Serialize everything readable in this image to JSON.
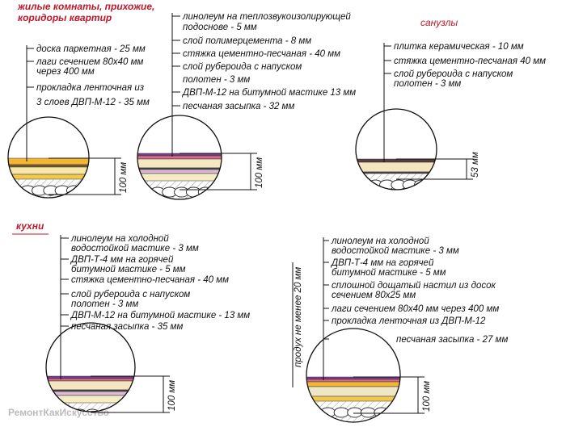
{
  "sections": {
    "living": [
      "жилые комнаты, прихожие,",
      "коридоры квартир"
    ],
    "bathrooms": "санузлы",
    "kitchens": "кухни"
  },
  "diagrams": [
    {
      "labels": [
        [
          "доска паркетная - 25 мм"
        ],
        [
          "лаги сечением 80х40 мм",
          "через 400 мм"
        ],
        [
          "прокладка ленточная из",
          "3 слоев ДВП-М-12 - 35 мм"
        ]
      ],
      "dimension": "100 мм"
    },
    {
      "labels": [
        [
          "линолеум на теплозвукоизолирующей",
          "подоснове - 5 мм"
        ],
        [
          "слой полимерцемента - 8 мм"
        ],
        [
          "стяжка цементно-песчаная - 40 мм"
        ],
        [
          "слой рубероида с напуском",
          "полотен - 3 мм"
        ],
        [
          "ДВП-М-12 на битумной мастике 13 мм"
        ],
        [
          "песчаная засыпка - 32 мм"
        ]
      ],
      "dimension": "100 мм"
    },
    {
      "labels": [
        [
          "плитка керамическая - 10 мм"
        ],
        [
          "стяжка цементно-песчаная 40 мм"
        ],
        [
          "слой рубероида с напуском",
          "полотен - 3 мм"
        ]
      ],
      "dimension": "53 мм"
    },
    {
      "labels": [
        [
          "линолеум на холодной",
          "водостойкой мастике - 3 мм"
        ],
        [
          "ДВП-Т-4 мм на горячей",
          "битумной мастике - 5 мм"
        ],
        [
          "стяжка цементно-песчаная - 40 мм"
        ],
        [
          "слой рубероида с напуском",
          "полотен - 3 мм"
        ],
        [
          "ДВП-М-12 на битумной мастике - 13 мм"
        ],
        [
          "песчаная засыпка - 35 мм"
        ]
      ],
      "dimension": "100 мм"
    },
    {
      "labels": [
        [
          "линолеум на холодной",
          "водостойкой мастике - 3 мм"
        ],
        [
          "ДВП-Т-4 мм на горячей",
          "битумной мастике - 5 мм"
        ],
        [
          "сплошной дощатый настил из досок",
          "сечением 80х25 мм"
        ],
        [
          "лаги сечением 80х40 мм через 400 мм"
        ],
        [
          "прокладка ленточная из ДВП-М-12"
        ],
        [
          "песчаная засыпка - 27 мм"
        ]
      ],
      "dimension": "100 мм",
      "vent": "продух не менее 20 мм"
    }
  ],
  "watermark": "РемонтКакИскусство"
}
